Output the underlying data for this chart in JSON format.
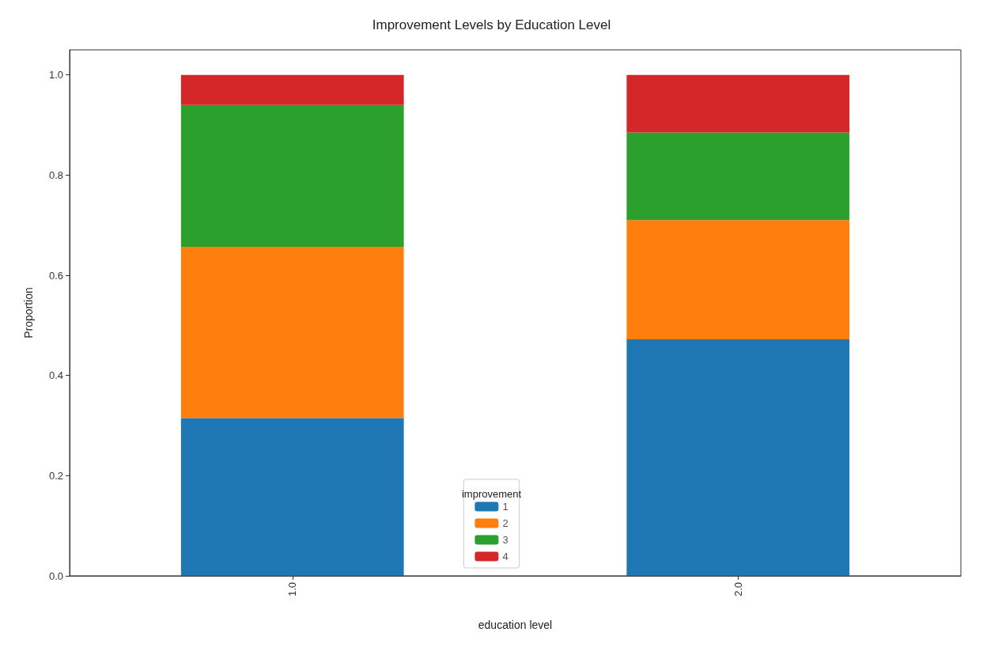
{
  "chart_data": {
    "type": "bar",
    "title": "Improvement Levels by Education Level",
    "xlabel": "education level",
    "ylabel": "Proportion",
    "legend_title": "improvement",
    "categories": [
      "1.0",
      "2.0"
    ],
    "stacked": true,
    "series": [
      {
        "name": "1",
        "color": "#1f77b4",
        "values": [
          0.315,
          0.472
        ]
      },
      {
        "name": "2",
        "color": "#ff7f0e",
        "values": [
          0.342,
          0.238
        ]
      },
      {
        "name": "3",
        "color": "#2ca02c",
        "values": [
          0.283,
          0.175
        ]
      },
      {
        "name": "4",
        "color": "#d62728",
        "values": [
          0.06,
          0.115
        ]
      }
    ],
    "ylim": [
      0,
      1.05
    ],
    "yticks": [
      {
        "value": 0,
        "label": "0.0"
      },
      {
        "value": 0.2,
        "label": "0.2"
      },
      {
        "value": 0.4,
        "label": "0.4"
      },
      {
        "value": 0.6,
        "label": "0.6"
      },
      {
        "value": 0.8,
        "label": "0.8"
      },
      {
        "value": 1,
        "label": "1.0"
      }
    ],
    "legend": "bottom",
    "grid": false
  }
}
